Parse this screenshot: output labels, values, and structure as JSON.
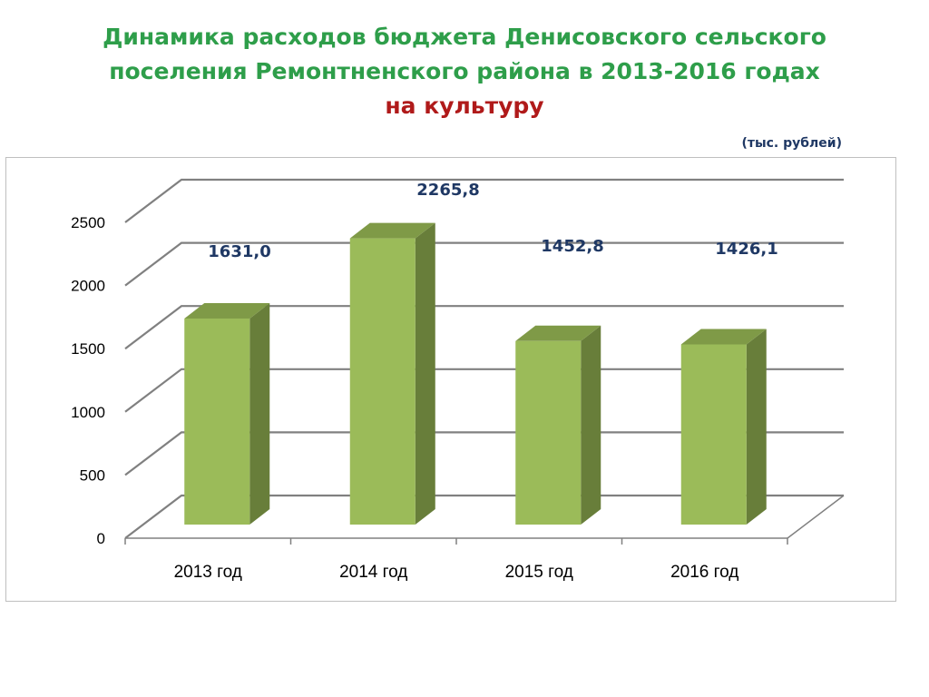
{
  "title": {
    "line1": "Динамика расходов бюджета Денисовского сельского",
    "line2": "поселения Ремонтненского района в 2013-2016 годах",
    "accent": "на культуру"
  },
  "units_label": "(тыс. рублей)",
  "colors": {
    "title": "#2e9e4a",
    "accent": "#b01a1a",
    "data_label": "#1f3864",
    "bar_front": "#9bbb59",
    "bar_side": "#687e3a",
    "bar_top": "#7f9a47",
    "grid": "#808080"
  },
  "chart_data": {
    "type": "bar",
    "style": "3d-column",
    "categories": [
      "2013 год",
      "2014 год",
      "2015 год",
      "2016 год"
    ],
    "values": [
      1631.0,
      2265.8,
      1452.8,
      1426.1
    ],
    "data_labels": [
      "1631,0",
      "2265,8",
      "1452,8",
      "1426,1"
    ],
    "y_ticks": [
      "0",
      "500",
      "1000",
      "1500",
      "2000",
      "2500"
    ],
    "ylim": [
      0,
      2500
    ],
    "grid": true,
    "legend": "none"
  }
}
